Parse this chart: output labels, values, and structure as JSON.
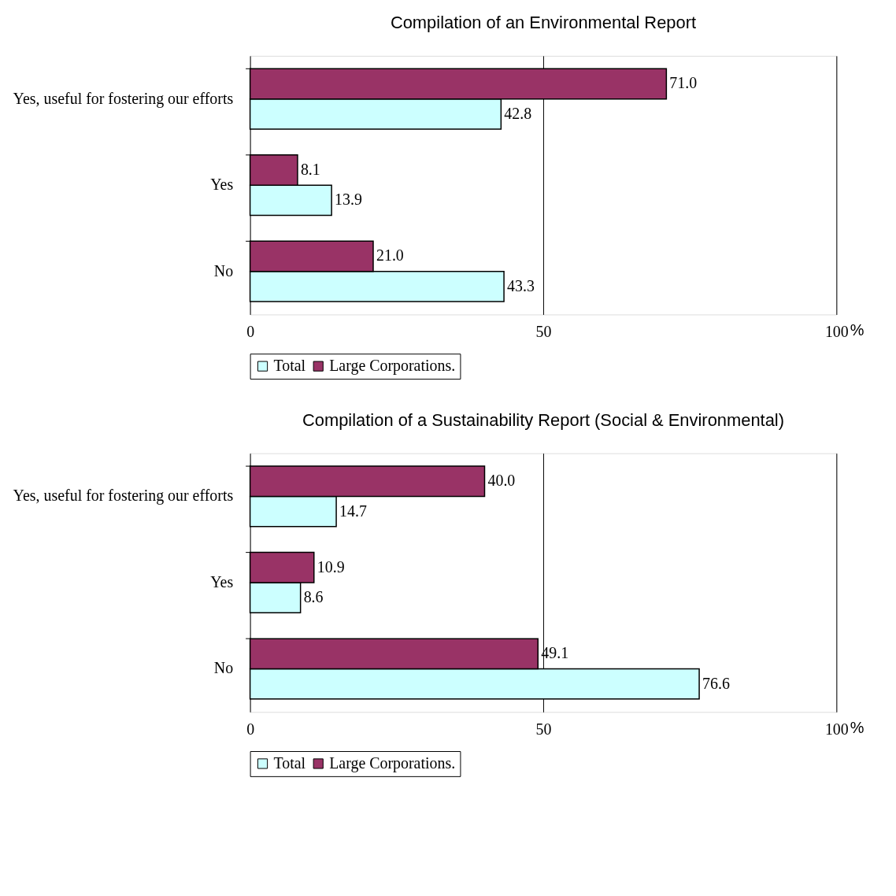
{
  "chart_data": [
    {
      "type": "bar",
      "orientation": "horizontal",
      "title": "Compilation of an Environmental Report",
      "xlabel": "%",
      "categories": [
        "Yes, useful for fostering our efforts",
        "Yes",
        "No"
      ],
      "series": [
        {
          "name": "Total",
          "color": "#ccffff",
          "values": [
            42.8,
            13.9,
            43.3
          ],
          "value_labels": [
            "42.8",
            "13.9",
            "43.3"
          ]
        },
        {
          "name": "Large Corporations.",
          "color": "#993366",
          "values": [
            71.0,
            8.1,
            21.0
          ],
          "value_labels": [
            "71.0",
            "8.1",
            "21.0"
          ]
        }
      ],
      "xlim": [
        0,
        100
      ],
      "xticks": [
        0,
        50,
        100
      ],
      "grid": "x",
      "legend": "bottom"
    },
    {
      "type": "bar",
      "orientation": "horizontal",
      "title": "Compilation of a Sustainability Report (Social & Environmental)",
      "xlabel": "%",
      "categories": [
        "Yes, useful for fostering our efforts",
        "Yes",
        "No"
      ],
      "series": [
        {
          "name": "Total",
          "color": "#ccffff",
          "values": [
            14.7,
            8.6,
            76.6
          ],
          "value_labels": [
            "14.7",
            "8.6",
            "76.6"
          ]
        },
        {
          "name": "Large Corporations.",
          "color": "#993366",
          "values": [
            40.0,
            10.9,
            49.1
          ],
          "value_labels": [
            "40.0",
            "10.9",
            "49.1"
          ]
        }
      ],
      "xlim": [
        0,
        100
      ],
      "xticks": [
        0,
        50,
        100
      ],
      "grid": "x",
      "legend": "bottom"
    }
  ]
}
